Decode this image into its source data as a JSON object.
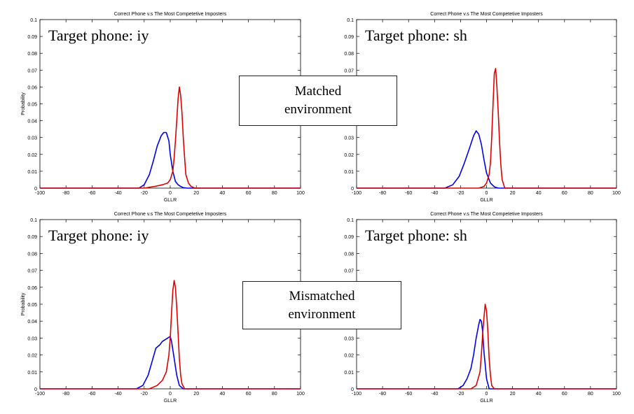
{
  "colors": {
    "series_correct": "#0000ee",
    "series_imposter": "#dd0000",
    "axes": "#000000"
  },
  "boxes": {
    "matched": [
      "Matched",
      "environment"
    ],
    "mismatched": [
      "Mismatched",
      "environment"
    ]
  },
  "chart_data": [
    {
      "type": "line",
      "title": "Correct Phone v.s The Most Competetive Imposters",
      "annotation": "Target phone: iy",
      "xlabel": "GLLR",
      "ylabel": "Probability",
      "xlim": [
        -100,
        100
      ],
      "ylim": [
        0,
        0.1
      ],
      "xticks": [
        -100,
        -80,
        -60,
        -40,
        -20,
        0,
        20,
        40,
        60,
        80,
        100
      ],
      "yticks": [
        "0",
        "0.01",
        "0.02",
        "0.03",
        "0.04",
        "0.05",
        "0.06",
        "0.07",
        "0.08",
        "0.09",
        "0.1"
      ],
      "grid": false,
      "series": [
        {
          "color": "#0000ee",
          "x": [
            -24,
            -20,
            -16,
            -13,
            -10,
            -7,
            -5,
            -3,
            -1,
            0,
            2,
            4,
            6,
            8,
            10,
            13
          ],
          "y": [
            0,
            0.002,
            0.008,
            0.016,
            0.025,
            0.031,
            0.033,
            0.033,
            0.028,
            0.02,
            0.01,
            0.004,
            0.002,
            0.001,
            0.0003,
            0
          ]
        },
        {
          "color": "#dd0000",
          "x": [
            -20,
            -12,
            -6,
            -2,
            0,
            2,
            3,
            4,
            5,
            6,
            7,
            8,
            9,
            10,
            11,
            12,
            14,
            16,
            19
          ],
          "y": [
            0,
            0.001,
            0.002,
            0.003,
            0.005,
            0.01,
            0.018,
            0.028,
            0.04,
            0.053,
            0.06,
            0.055,
            0.045,
            0.03,
            0.018,
            0.008,
            0.003,
            0.001,
            0
          ]
        }
      ]
    },
    {
      "type": "line",
      "title": "Correct Phone v.s The Most Competetive Imposters",
      "annotation": "Target phone: sh",
      "xlabel": "GLLR",
      "ylabel": "",
      "xlim": [
        -100,
        100
      ],
      "ylim": [
        0,
        0.1
      ],
      "xticks": [
        -100,
        -80,
        -60,
        -40,
        -20,
        0,
        20,
        40,
        60,
        80,
        100
      ],
      "yticks": [
        "0",
        "0.01",
        "0.02",
        "0.03",
        "0.04",
        "0.05",
        "0.06",
        "0.07",
        "0.08",
        "0.09",
        "0.1"
      ],
      "grid": false,
      "series": [
        {
          "color": "#0000ee",
          "x": [
            -32,
            -26,
            -21,
            -17,
            -13,
            -10,
            -8,
            -6,
            -4,
            -2,
            0,
            3,
            6,
            9
          ],
          "y": [
            0,
            0.002,
            0.007,
            0.015,
            0.024,
            0.031,
            0.034,
            0.032,
            0.026,
            0.017,
            0.009,
            0.003,
            0.0008,
            0
          ]
        },
        {
          "color": "#dd0000",
          "x": [
            -6,
            -2,
            0,
            2,
            3,
            4,
            5,
            6,
            7,
            8,
            9,
            10,
            11,
            12,
            14
          ],
          "y": [
            0,
            0.001,
            0.003,
            0.008,
            0.015,
            0.03,
            0.05,
            0.068,
            0.071,
            0.06,
            0.045,
            0.028,
            0.014,
            0.005,
            0
          ]
        }
      ]
    },
    {
      "type": "line",
      "title": "Correct Phone v.s The Most Competetive Imposters",
      "annotation": "Target phone: iy",
      "xlabel": "GLLR",
      "ylabel": "Probability",
      "xlim": [
        -100,
        100
      ],
      "ylim": [
        0,
        0.1
      ],
      "xticks": [
        -100,
        -80,
        -60,
        -40,
        -20,
        0,
        20,
        40,
        60,
        80,
        100
      ],
      "yticks": [
        "0",
        "0.01",
        "0.02",
        "0.03",
        "0.04",
        "0.05",
        "0.06",
        "0.07",
        "0.08",
        "0.09",
        "0.1"
      ],
      "grid": false,
      "series": [
        {
          "color": "#0000ee",
          "x": [
            -26,
            -21,
            -17,
            -14,
            -11,
            -8,
            -6,
            -4,
            -2,
            0,
            1,
            3,
            5,
            7,
            10
          ],
          "y": [
            0,
            0.002,
            0.008,
            0.016,
            0.024,
            0.026,
            0.028,
            0.029,
            0.03,
            0.031,
            0.028,
            0.018,
            0.008,
            0.002,
            0
          ]
        },
        {
          "color": "#dd0000",
          "x": [
            -16,
            -10,
            -6,
            -3,
            -1,
            0,
            1,
            2,
            3,
            4,
            5,
            6,
            7,
            8,
            9,
            11
          ],
          "y": [
            0,
            0.002,
            0.005,
            0.01,
            0.02,
            0.03,
            0.045,
            0.058,
            0.064,
            0.06,
            0.048,
            0.033,
            0.018,
            0.008,
            0.003,
            0
          ]
        }
      ]
    },
    {
      "type": "line",
      "title": "Correct Phone v.s The Most Competetive Imposters",
      "annotation": "Target phone: sh",
      "xlabel": "GLLR",
      "ylabel": "",
      "xlim": [
        -100,
        100
      ],
      "ylim": [
        0,
        0.1
      ],
      "xticks": [
        -100,
        -80,
        -60,
        -40,
        -20,
        0,
        20,
        40,
        60,
        80,
        100
      ],
      "yticks": [
        "0",
        "0.01",
        "0.02",
        "0.03",
        "0.04",
        "0.05",
        "0.06",
        "0.07",
        "0.08",
        "0.09",
        "0.1"
      ],
      "grid": false,
      "series": [
        {
          "color": "#0000ee",
          "x": [
            -22,
            -18,
            -15,
            -12,
            -10,
            -8,
            -6,
            -5,
            -4,
            -3,
            -2,
            0,
            2
          ],
          "y": [
            0,
            0.002,
            0.006,
            0.012,
            0.02,
            0.03,
            0.038,
            0.041,
            0.04,
            0.034,
            0.022,
            0.006,
            0
          ]
        },
        {
          "color": "#dd0000",
          "x": [
            -12,
            -8,
            -5,
            -4,
            -3,
            -2,
            -1,
            0,
            1,
            2,
            3,
            4,
            6
          ],
          "y": [
            0,
            0.002,
            0.01,
            0.02,
            0.032,
            0.042,
            0.05,
            0.046,
            0.034,
            0.018,
            0.008,
            0.002,
            0
          ]
        }
      ]
    }
  ]
}
